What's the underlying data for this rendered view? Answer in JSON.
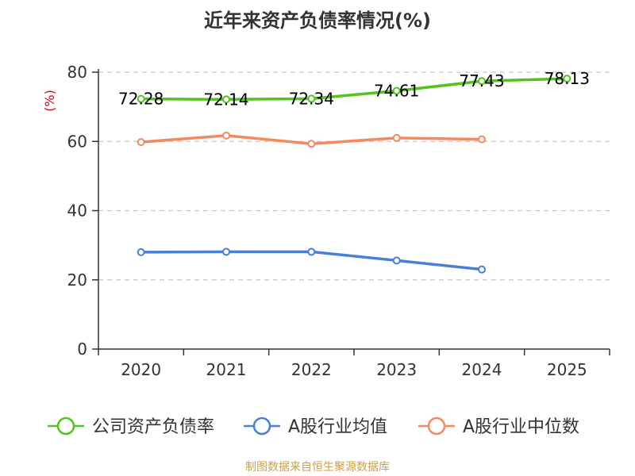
{
  "title": "近年来资产负债率情况(%)",
  "source": "制图数据来自恒生聚源数据库",
  "colors": {
    "source_text": "#c8a24a",
    "ylabel": "#d0021b",
    "axis": "#333333",
    "grid": "#c8c8c8"
  },
  "chart_data": {
    "type": "line",
    "title": "近年来资产负债率情况(%)",
    "ylabel": "(%)",
    "xlabel": "",
    "categories": [
      "2020",
      "2021",
      "2022",
      "2023",
      "2024",
      "2025"
    ],
    "ylim": [
      0,
      80
    ],
    "yticks": [
      0,
      20,
      40,
      60,
      80
    ],
    "grid": true,
    "legend_position": "bottom",
    "series": [
      {
        "name": "公司资产负债率",
        "color": "#52c41a",
        "values": [
          72.28,
          72.14,
          72.34,
          74.61,
          77.43,
          78.13
        ],
        "labels": [
          "72.28",
          "72.14",
          "72.34",
          "74.61",
          "77.43",
          "78.13"
        ],
        "show_labels": true
      },
      {
        "name": "A股行业均值",
        "color": "#4a7fd9",
        "values": [
          28.0,
          28.1,
          28.1,
          25.6,
          23.0,
          null
        ],
        "show_labels": false
      },
      {
        "name": "A股行业中位数",
        "color": "#f4895f",
        "values": [
          59.8,
          61.7,
          59.3,
          61.0,
          60.6,
          null
        ],
        "show_labels": false
      }
    ]
  }
}
